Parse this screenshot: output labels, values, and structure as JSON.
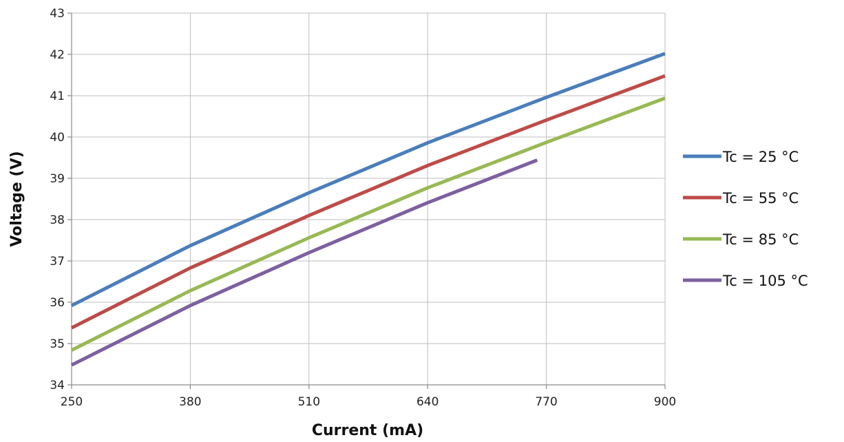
{
  "chart_data": {
    "type": "line",
    "title": "",
    "xlabel": "Current (mA)",
    "ylabel": "Voltage (V)",
    "xlim": [
      250,
      900
    ],
    "ylim": [
      34,
      43
    ],
    "x_ticks": [
      250,
      380,
      510,
      640,
      770,
      900
    ],
    "y_ticks": [
      34,
      35,
      36,
      37,
      38,
      39,
      40,
      41,
      42,
      43
    ],
    "grid": true,
    "legend_position": "right",
    "series": [
      {
        "name": "Tc = 25 °C",
        "color": "#4a7ebb",
        "points": [
          [
            250,
            35.92
          ],
          [
            380,
            37.37
          ],
          [
            510,
            38.65
          ],
          [
            640,
            39.86
          ],
          [
            770,
            40.96
          ],
          [
            900,
            42.02
          ]
        ]
      },
      {
        "name": "Tc = 55 °C",
        "color": "#be4b48",
        "points": [
          [
            250,
            35.38
          ],
          [
            380,
            36.83
          ],
          [
            510,
            38.1
          ],
          [
            640,
            39.31
          ],
          [
            770,
            40.41
          ],
          [
            900,
            41.48
          ]
        ]
      },
      {
        "name": "Tc = 85 °C",
        "color": "#98b954",
        "points": [
          [
            250,
            34.84
          ],
          [
            380,
            36.28
          ],
          [
            510,
            37.56
          ],
          [
            640,
            38.77
          ],
          [
            770,
            39.87
          ],
          [
            900,
            40.94
          ]
        ]
      },
      {
        "name": "Tc = 105 °C",
        "color": "#7d60a0",
        "points": [
          [
            250,
            34.48
          ],
          [
            380,
            35.92
          ],
          [
            510,
            37.2
          ],
          [
            640,
            38.41
          ],
          [
            760,
            39.44
          ]
        ]
      }
    ]
  }
}
